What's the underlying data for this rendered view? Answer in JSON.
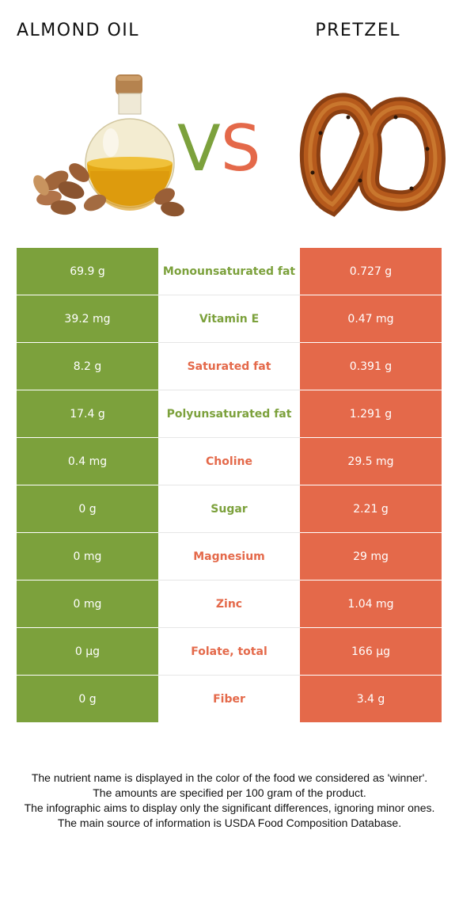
{
  "header": {
    "left_title": "ALMOND OIL",
    "right_title": "PRETZEL"
  },
  "vs": {
    "v": "V",
    "s": "S"
  },
  "colors": {
    "winner_left": "#7ca13c",
    "winner_right": "#e4694a"
  },
  "rows": [
    {
      "left": "69.9 g",
      "name": "Monounsaturated fat",
      "right": "0.727 g",
      "winner": "left"
    },
    {
      "left": "39.2 mg",
      "name": "Vitamin E",
      "right": "0.47 mg",
      "winner": "left"
    },
    {
      "left": "8.2 g",
      "name": "Saturated fat",
      "right": "0.391 g",
      "winner": "right"
    },
    {
      "left": "17.4 g",
      "name": "Polyunsaturated fat",
      "right": "1.291 g",
      "winner": "left"
    },
    {
      "left": "0.4 mg",
      "name": "Choline",
      "right": "29.5 mg",
      "winner": "right"
    },
    {
      "left": "0 g",
      "name": "Sugar",
      "right": "2.21 g",
      "winner": "left"
    },
    {
      "left": "0 mg",
      "name": "Magnesium",
      "right": "29 mg",
      "winner": "right"
    },
    {
      "left": "0 mg",
      "name": "Zinc",
      "right": "1.04 mg",
      "winner": "right"
    },
    {
      "left": "0 µg",
      "name": "Folate, total",
      "right": "166 µg",
      "winner": "right"
    },
    {
      "left": "0 g",
      "name": "Fiber",
      "right": "3.4 g",
      "winner": "right"
    }
  ],
  "footer": {
    "line1": "The nutrient name is displayed in the color of the food we considered as 'winner'.",
    "line2": "The amounts are specified per 100 gram of the product.",
    "line3": "The infographic aims to display only the significant differences, ignoring minor ones.",
    "line4": "The main source of information is USDA Food Composition Database."
  }
}
